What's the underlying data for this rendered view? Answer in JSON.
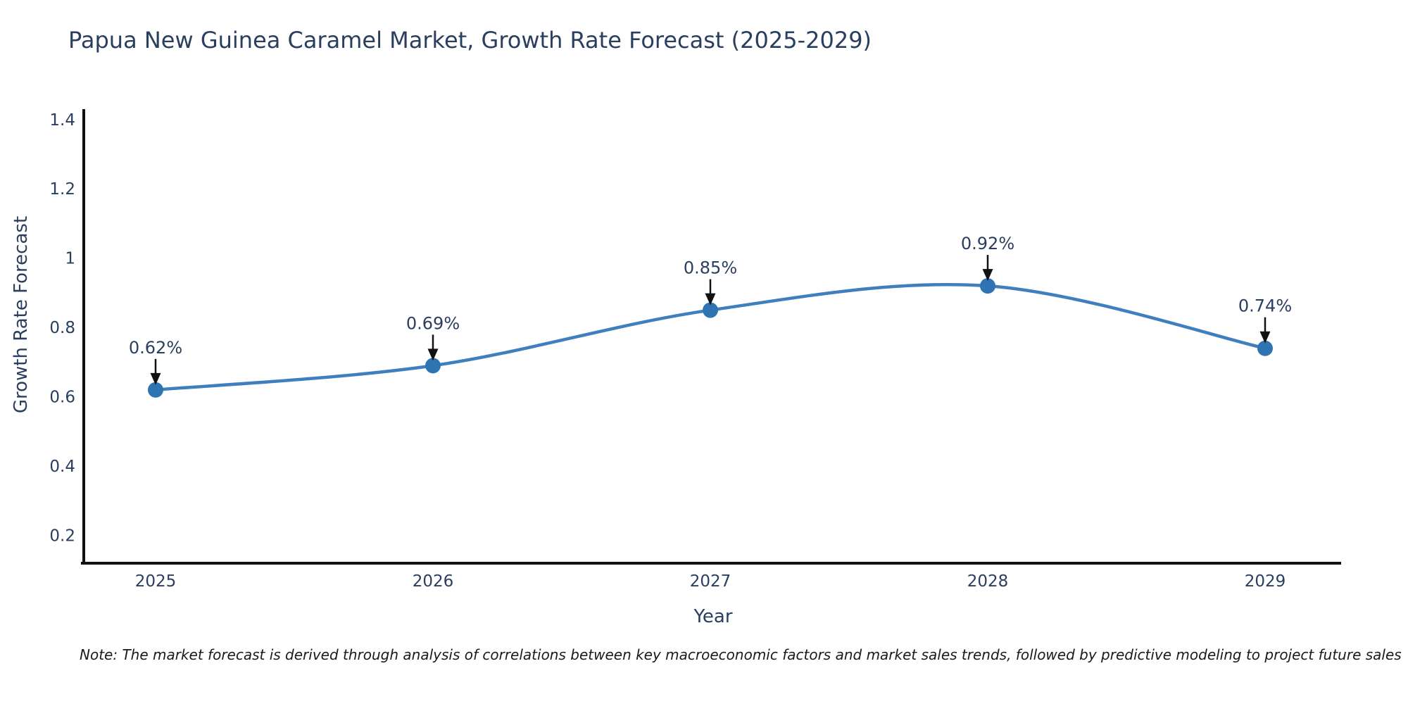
{
  "title": "Papua New Guinea Caramel Market, Growth Rate Forecast (2025-2029)",
  "note": "Note: The market forecast is derived through analysis of correlations between key macroeconomic factors and market sales trends, followed by predictive modeling to project future sales",
  "colors": {
    "line": "#3f7fbe",
    "marker": "#2f74b2",
    "axis_line": "#111111",
    "chart_text": "#2a3f5f",
    "annotation_text": "#2a3f5f",
    "annotation_arrow": "#111111",
    "note_text": "#1a1a1a",
    "background": "#ffffff"
  },
  "chart_data": {
    "type": "line",
    "line_shape": "spline",
    "title": "Papua New Guinea Caramel Market, Growth Rate Forecast (2025-2029)",
    "xlabel": "Year",
    "ylabel": "Growth Rate Forecast",
    "categories": [
      "2025",
      "2026",
      "2027",
      "2028",
      "2029"
    ],
    "series": [
      {
        "name": "Growth Rate Forecast",
        "values": [
          0.62,
          0.69,
          0.85,
          0.92,
          0.74
        ]
      }
    ],
    "point_labels": [
      "0.62%",
      "0.69%",
      "0.85%",
      "0.92%",
      "0.74%"
    ],
    "ytick_labels": [
      "0.2",
      "0.4",
      "0.6",
      "0.8",
      "1",
      "1.2",
      "1.4"
    ],
    "ytick_values": [
      0.2,
      0.4,
      0.6,
      0.8,
      1.0,
      1.2,
      1.4
    ],
    "ylim": [
      0.12,
      1.43
    ],
    "grid": false,
    "legend": "none"
  }
}
